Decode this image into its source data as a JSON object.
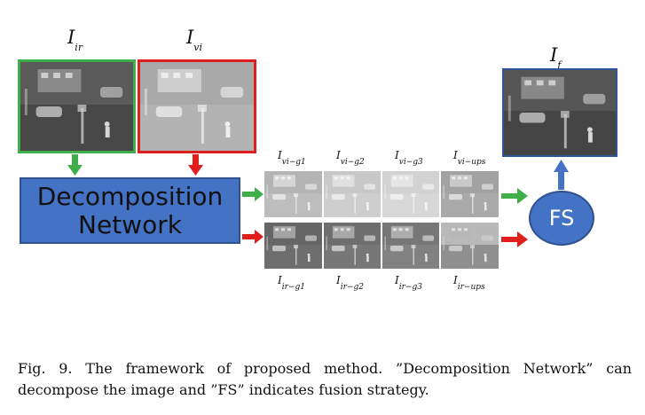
{
  "inputs": {
    "ir": {
      "symbol": "I",
      "sub": "ir",
      "border_color": "#3fae49"
    },
    "vi": {
      "symbol": "I",
      "sub": "vi",
      "border_color": "#e01e1e"
    }
  },
  "output": {
    "symbol": "I",
    "sub": "f",
    "border_color": "#2f5597"
  },
  "decomposition": {
    "line1": "Decomposition",
    "line2": "Network"
  },
  "fs": {
    "label": "FS"
  },
  "vi_row": [
    {
      "symbol": "I",
      "sub": "vi−g1"
    },
    {
      "symbol": "I",
      "sub": "vi−g2"
    },
    {
      "symbol": "I",
      "sub": "vi−g3"
    },
    {
      "symbol": "I",
      "sub": "vi−ups"
    }
  ],
  "ir_row": [
    {
      "symbol": "I",
      "sub": "ir−g1"
    },
    {
      "symbol": "I",
      "sub": "ir−g2"
    },
    {
      "symbol": "I",
      "sub": "ir−g3"
    },
    {
      "symbol": "I",
      "sub": "ir−ups"
    }
  ],
  "arrow_colors": {
    "green": "#3fae49",
    "red": "#e01e1e",
    "blue": "#4472c4"
  },
  "caption": "Fig. 9.  The framework of proposed method. ”Decomposition Network” can decompose the image and ”FS” indicates fusion strategy."
}
